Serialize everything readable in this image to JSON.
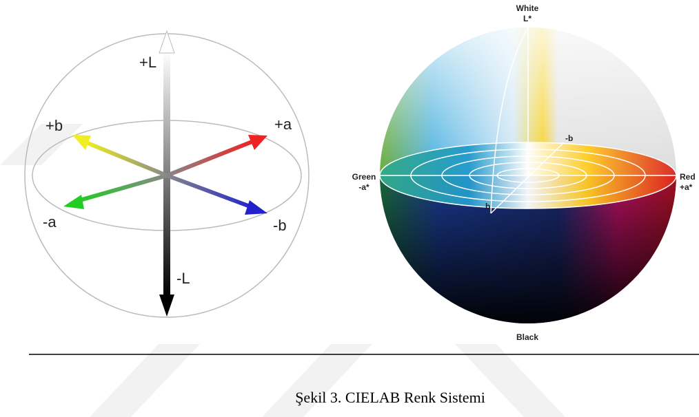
{
  "figure": {
    "left": {
      "labels": {
        "plus_l": "+L",
        "minus_l": "-L",
        "plus_a": "+a",
        "minus_a": "-a",
        "plus_b": "+b",
        "minus_b": "-b"
      }
    },
    "right": {
      "labels": {
        "white": "White",
        "l_star": "L*",
        "black": "Black",
        "green": "Green",
        "minus_a_star": "-a*",
        "red": "Red",
        "plus_a_star": "+a*",
        "minus_b": "-b",
        "b": "b"
      }
    }
  },
  "caption": "Şekil 3. CIELAB Renk Sistemi"
}
